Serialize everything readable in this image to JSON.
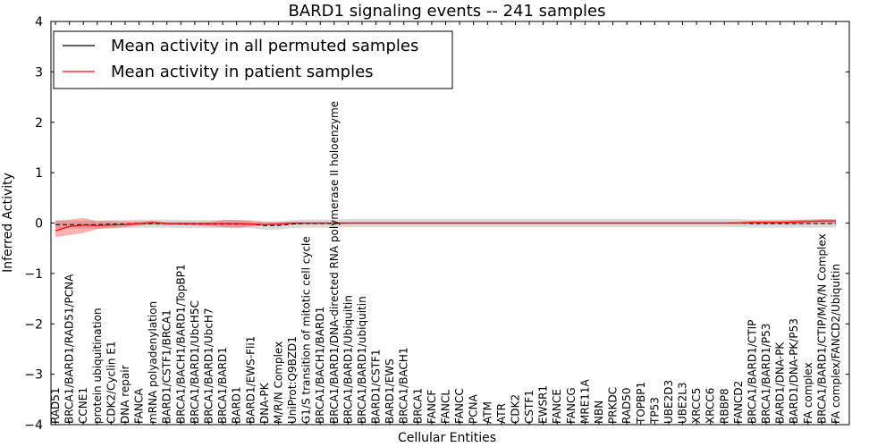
{
  "chart_data": {
    "type": "line",
    "title": "BARD1 signaling events -- 241 samples",
    "xlabel": "Cellular Entities",
    "ylabel": "Inferred Activity",
    "ylim": [
      -4,
      4
    ],
    "yticks": [
      "4",
      "3",
      "2",
      "1",
      "0",
      "−1",
      "−2",
      "−3",
      "−4"
    ],
    "ytick_values": [
      4,
      3,
      2,
      1,
      0,
      -1,
      -2,
      -3,
      -4
    ],
    "legend_position": "top-left",
    "categories": [
      "RAD51",
      "BRCA1/BARD1/RAD51/PCNA",
      "CCNE1",
      "protein ubiquitination",
      "CDK2/Cyclin E1",
      "DNA repair",
      "FANCA",
      "mRNA polyadenylation",
      "BARD1/CSTF1/BRCA1",
      "BRCA1/BACH1/BARD1/TopBP1",
      "BRCA1/BARD1/UbcH5C",
      "BRCA1/BARD1/UbcH7",
      "BRCA1/BARD1",
      "BARD1",
      "BARD1/EWS-Fli1",
      "DNA-PK",
      "M/R/N Complex",
      "UniProt:Q9BZD1",
      "G1/S transition of mitotic cell cycle",
      "BRCA1/BACH1/BARD1",
      "BRCA1/BARD1/DNA-directed RNA polymerase II holoenzyme",
      "BRCA1/BARD1/Ubiquitin",
      "BRCA1/BARD1/ubiquitin",
      "BARD1/CSTF1",
      "BARD1/EWS",
      "BRCA1/BACH1",
      "BRCA1",
      "FANCF",
      "FANCL",
      "FANCC",
      "PCNA",
      "ATM",
      "ATR",
      "CDK2",
      "CSTF1",
      "EWSR1",
      "FANCE",
      "FANCG",
      "MRE11A",
      "NBN",
      "PRKDC",
      "RAD50",
      "TOPBP1",
      "TP53",
      "UBE2D3",
      "UBE2L3",
      "XRCC5",
      "XRCC6",
      "RBBP8",
      "FANCD2",
      "BRCA1/BARD1/CTIP",
      "BRCA1/BARD1/P53",
      "BARD1/DNA-PK",
      "BARD1/DNA-PK/P53",
      "FA complex",
      "BRCA1/BARD1/CTIP/M/R/N Complex",
      "FA complex/FANCD2/Ubiquitin"
    ],
    "series": [
      {
        "name": "Mean activity in all permuted samples",
        "color": "#000000",
        "values": [
          -0.03,
          -0.03,
          -0.03,
          -0.03,
          -0.02,
          -0.02,
          -0.01,
          -0.01,
          -0.01,
          -0.02,
          -0.02,
          -0.02,
          -0.02,
          -0.02,
          -0.02,
          -0.05,
          -0.05,
          -0.02,
          -0.01,
          -0.01,
          -0.01,
          0,
          0,
          0,
          0,
          0,
          0,
          0,
          0,
          0,
          0,
          0,
          0,
          0,
          0,
          0,
          0,
          0,
          0,
          0,
          0,
          0,
          0,
          0,
          0,
          0,
          0,
          0,
          0,
          0,
          -0.01,
          -0.01,
          -0.01,
          -0.01,
          -0.01,
          -0.01,
          -0.01
        ],
        "band": 0.08
      },
      {
        "name": "Mean activity in patient samples",
        "color": "#ff0000",
        "values": [
          -0.15,
          -0.07,
          -0.04,
          -0.05,
          -0.04,
          -0.03,
          -0.01,
          0.01,
          -0.01,
          -0.01,
          -0.01,
          -0.01,
          -0.01,
          -0.01,
          -0.02,
          -0.03,
          -0.02,
          0,
          0,
          0,
          0,
          0,
          0,
          0,
          0,
          0,
          0,
          0,
          0,
          0,
          0,
          0,
          0,
          0,
          0,
          0,
          0,
          0,
          0,
          0,
          0,
          0,
          0,
          0,
          0,
          0,
          0,
          0,
          0,
          0,
          0.01,
          0.01,
          0.01,
          0.02,
          0.03,
          0.04,
          0.04
        ],
        "band_upper": [
          0.05,
          0.07,
          0.1,
          0.04,
          0.04,
          0.03,
          0.03,
          0.04,
          0.02,
          0.02,
          0.02,
          0.02,
          0.06,
          0.06,
          0.04,
          0.02,
          0.02,
          0.02,
          0.02,
          0.02,
          0.02,
          0.02,
          0.02,
          0.02,
          0.02,
          0.02,
          0.02,
          0.02,
          0.02,
          0.02,
          0.02,
          0.02,
          0.02,
          0.02,
          0.02,
          0.02,
          0.02,
          0.02,
          0.02,
          0.02,
          0.02,
          0.02,
          0.02,
          0.02,
          0.02,
          0.02,
          0.02,
          0.02,
          0.02,
          0.03,
          0.04,
          0.05,
          0.05,
          0.06,
          0.07,
          0.08,
          0.08
        ],
        "band_lower": [
          -0.28,
          -0.24,
          -0.2,
          -0.12,
          -0.1,
          -0.08,
          -0.05,
          -0.03,
          -0.04,
          -0.04,
          -0.05,
          -0.06,
          -0.08,
          -0.09,
          -0.07,
          -0.05,
          -0.04,
          -0.03,
          -0.02,
          -0.02,
          -0.02,
          -0.02,
          -0.02,
          -0.02,
          -0.02,
          -0.02,
          -0.02,
          -0.02,
          -0.02,
          -0.02,
          -0.02,
          -0.02,
          -0.02,
          -0.02,
          -0.02,
          -0.02,
          -0.02,
          -0.02,
          -0.02,
          -0.02,
          -0.02,
          -0.02,
          -0.02,
          -0.02,
          -0.02,
          -0.02,
          -0.02,
          -0.02,
          -0.02,
          -0.02,
          -0.02,
          -0.02,
          -0.02,
          -0.02,
          -0.01,
          -0.01,
          -0.01
        ]
      }
    ]
  }
}
